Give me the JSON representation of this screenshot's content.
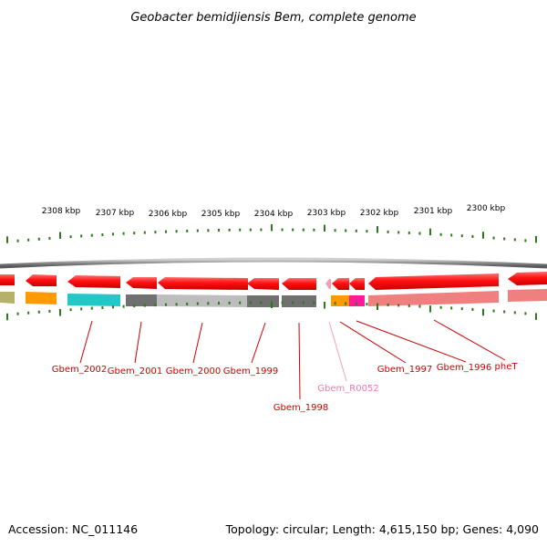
{
  "title": "Geobacter bemidjiensis Bem, complete genome",
  "kbp_labels": [
    "2308 kbp",
    "2307 kbp",
    "2306 kbp",
    "2305 kbp",
    "2304 kbp",
    "2303 kbp",
    "2302 kbp",
    "2301 kbp",
    "2300 kbp"
  ],
  "gene_labels": [
    {
      "text": "Gbem_2002",
      "color": "#cc0000"
    },
    {
      "text": "Gbem_2001",
      "color": "#cc0000"
    },
    {
      "text": "Gbem_2000",
      "color": "#cc0000"
    },
    {
      "text": "Gbem_1999",
      "color": "#cc0000"
    },
    {
      "text": "Gbem_1998",
      "color": "#cc0000"
    },
    {
      "text": "Gbem_R0052",
      "color": "#e87aa8"
    },
    {
      "text": "Gbem_1997",
      "color": "#cc0000"
    },
    {
      "text": "Gbem_1996",
      "color": "#cc0000"
    },
    {
      "text": "pheT",
      "color": "#cc0000"
    }
  ],
  "footer": {
    "accession": "Accession: NC_011146",
    "stats": "Topology: circular; Length: 4,615,150 bp; Genes: 4,090"
  },
  "colors": {
    "backbone": "#8a8a8a",
    "gene_red": "#ee1111",
    "tick_green": "#2a7a1a",
    "olive": "#b5b06a",
    "orange": "#ff9900",
    "cyan": "#22c8c8",
    "dark_gray": "#707070",
    "light_gray": "#bdbdbd",
    "magenta": "#ff1a9a",
    "salmon": "#f08080",
    "pink": "#f2a0b8"
  }
}
